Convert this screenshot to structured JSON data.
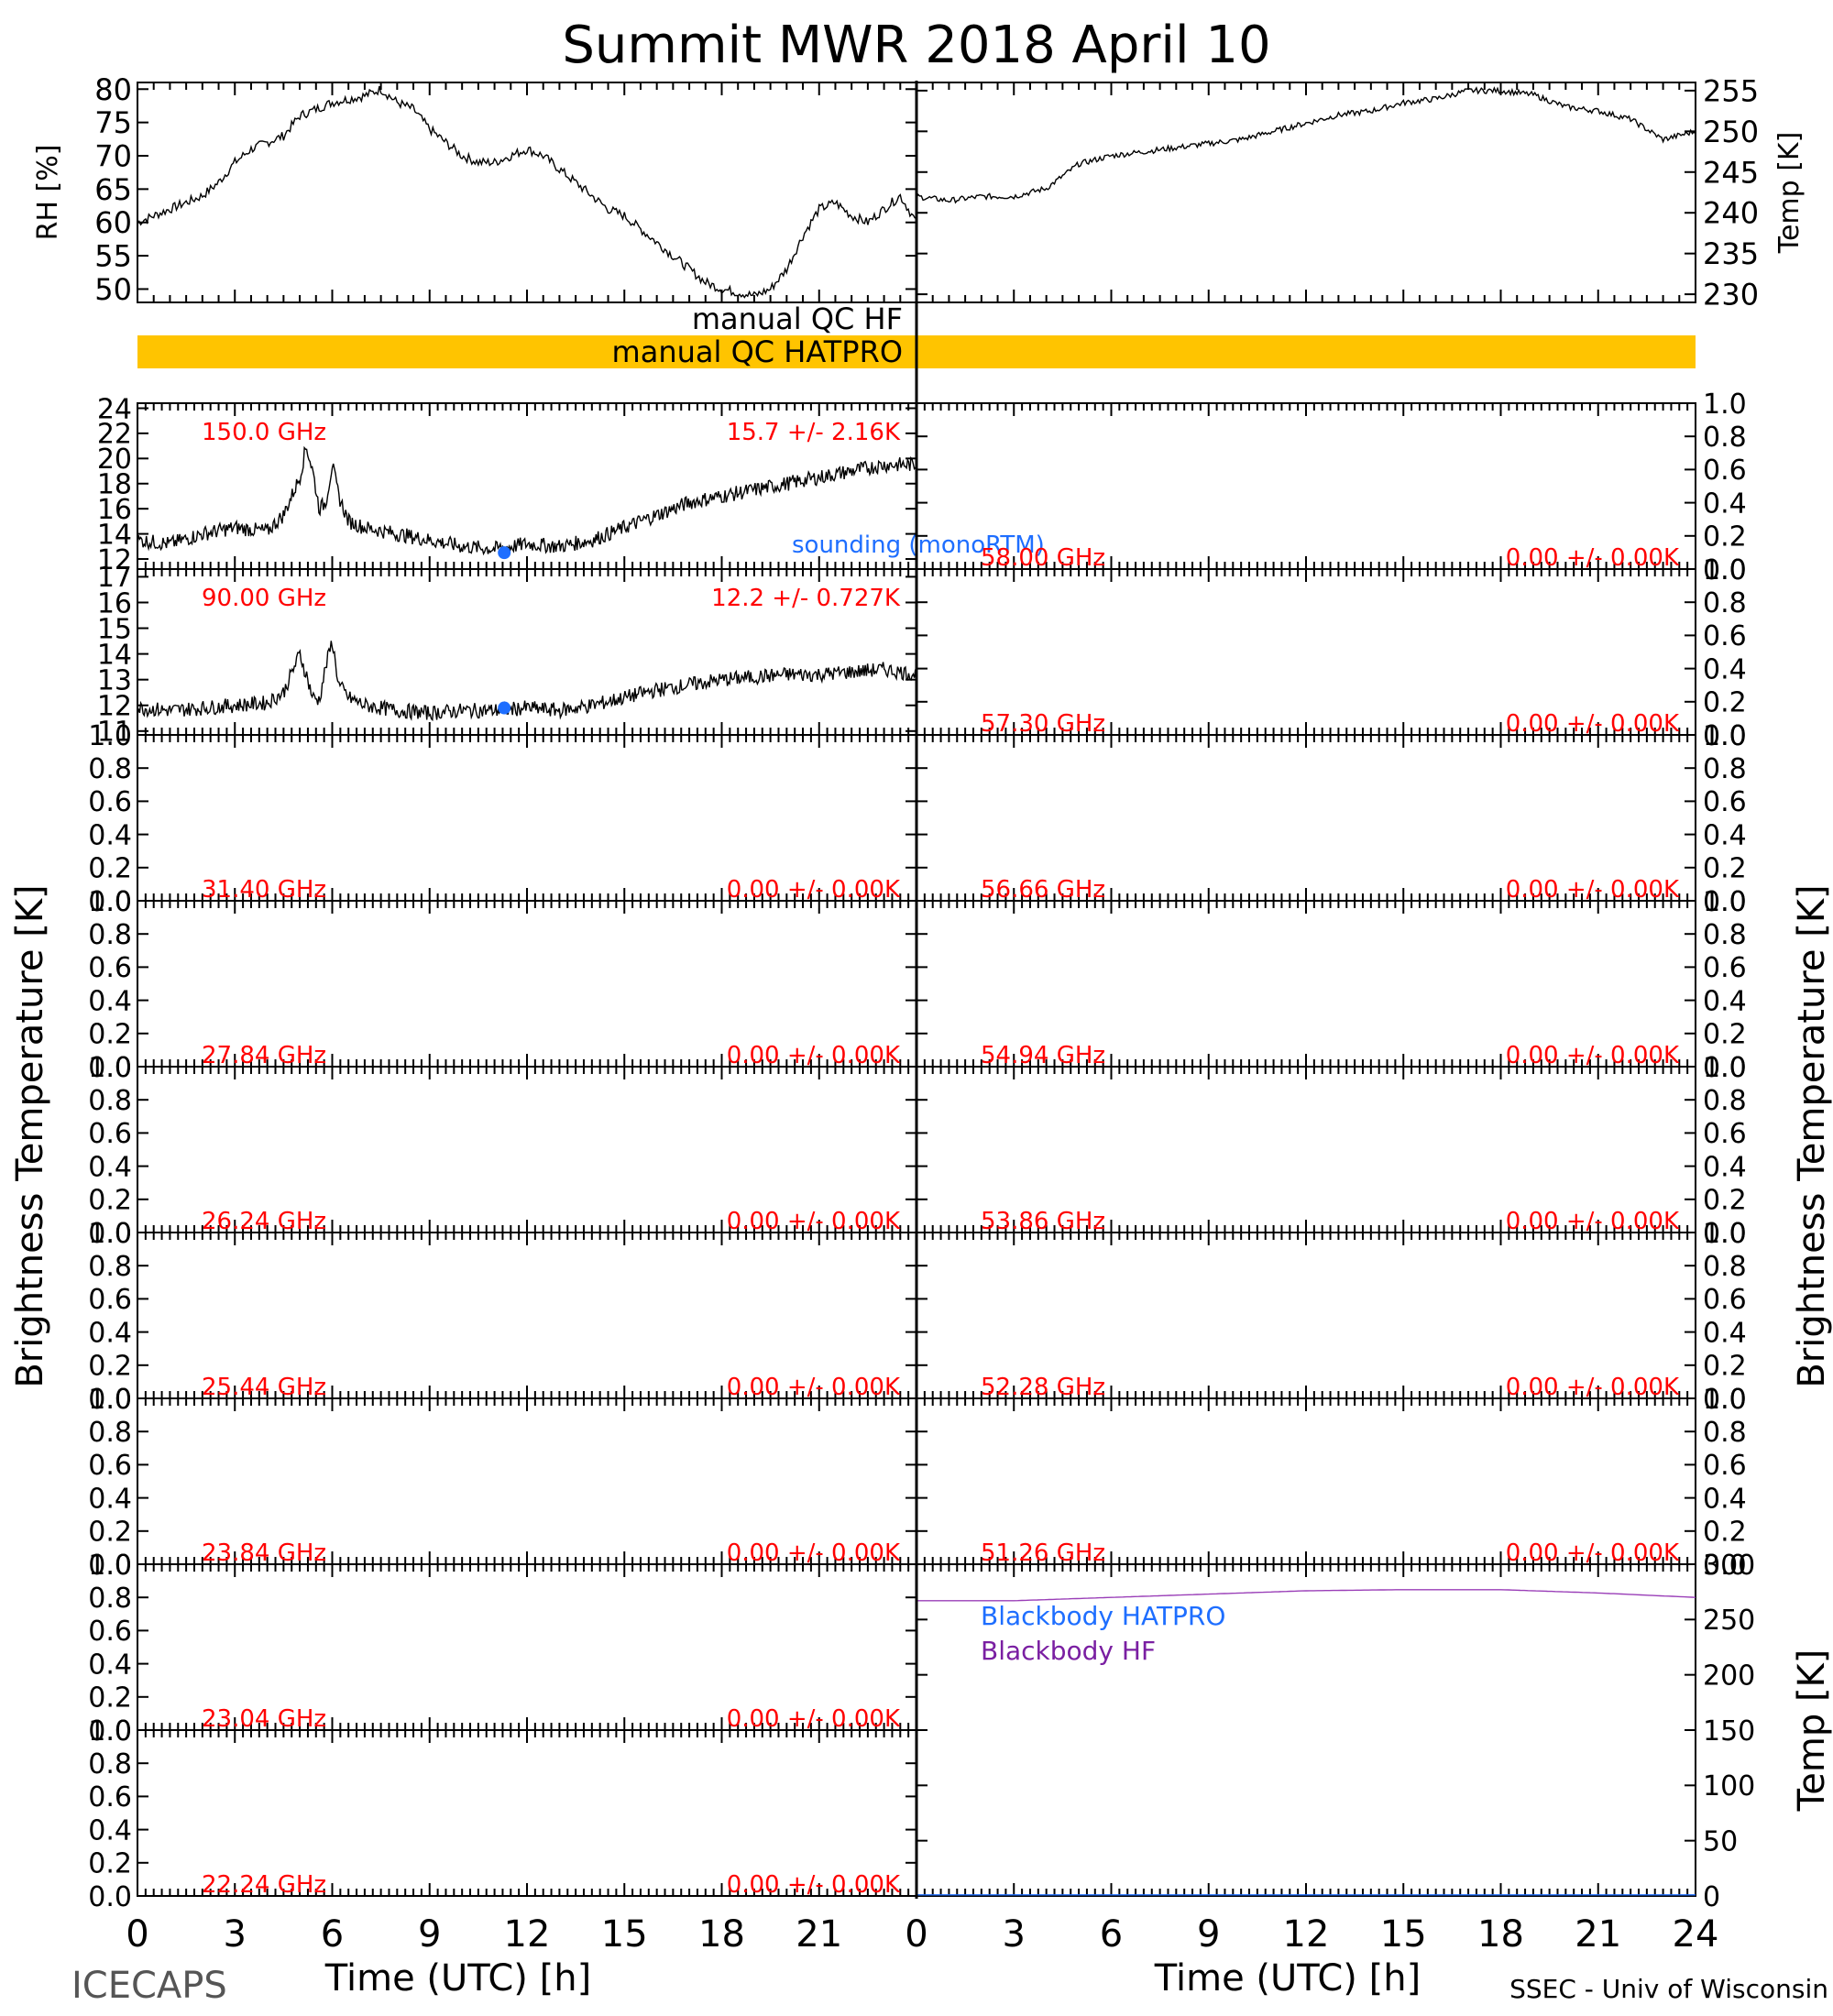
{
  "title": "Summit MWR 2018 April 10",
  "footer": {
    "left_label": "ICECAPS",
    "right_label": "SSEC - Univ of Wisconsin"
  },
  "axes": {
    "x_label": "Time (UTC) [h]",
    "x_ticks": [
      "0",
      "3",
      "6",
      "9",
      "12",
      "15",
      "18",
      "21",
      "24"
    ],
    "left_tb_label": "Brightness Temperature [K]",
    "right_tb_label": "Brightness Temperature [K]"
  },
  "qc": {
    "hf_label": "manual QC HF",
    "hatpro_label": "manual QC HATPRO",
    "hatpro_flag_color": "#ffc400"
  },
  "colors": {
    "trace": "#000000",
    "channel_label": "#ff0000",
    "sounding": "#1e6eff",
    "bb_hatpro": "#1e6eff",
    "bb_hf": "#7a1fa2",
    "bb_line": "#9a3fb8"
  },
  "chart_data": [
    {
      "type": "line",
      "panel": "rh",
      "ylabel": "RH [%]",
      "ylim": [
        48,
        81
      ],
      "yticks": [
        "50",
        "55",
        "60",
        "65",
        "70",
        "75",
        "80"
      ],
      "x": [
        0,
        0.5,
        1,
        1.5,
        2,
        2.5,
        3,
        3.5,
        4,
        4.5,
        5,
        5.5,
        6,
        6.5,
        7,
        7.5,
        8,
        8.5,
        9,
        9.5,
        10,
        10.5,
        11,
        11.5,
        12,
        12.5,
        13,
        13.5,
        14,
        14.5,
        15,
        15.5,
        16,
        16.5,
        17,
        17.5,
        18,
        18.5,
        19,
        19.5,
        20,
        20.5,
        21,
        21.5,
        22,
        22.5,
        23,
        23.5,
        24
      ],
      "values": [
        60,
        61,
        62,
        63,
        64,
        66,
        69,
        71,
        72,
        73,
        76,
        77,
        78,
        78.5,
        79,
        80,
        78,
        77,
        74,
        72,
        70,
        69,
        69,
        70,
        71,
        70,
        68,
        66,
        64,
        62,
        61,
        59,
        57,
        55,
        53,
        51,
        50,
        49.5,
        49,
        50,
        53,
        58,
        62,
        63,
        61,
        60,
        62,
        64,
        60
      ]
    },
    {
      "type": "line",
      "panel": "temp",
      "ylabel": "Temp [K]",
      "ylim": [
        229,
        256
      ],
      "yticks": [
        "230",
        "235",
        "240",
        "245",
        "250",
        "255"
      ],
      "x": [
        0,
        1,
        2,
        3,
        4,
        5,
        6,
        7,
        8,
        9,
        10,
        11,
        12,
        13,
        14,
        15,
        16,
        17,
        18,
        19,
        20,
        21,
        22,
        23,
        24
      ],
      "values": [
        242,
        241.5,
        242,
        242,
        243,
        246,
        247,
        247.5,
        248,
        248.5,
        249,
        250,
        251,
        252,
        252.5,
        253.5,
        254,
        255,
        255,
        254.5,
        253,
        252.5,
        251.5,
        249,
        250
      ]
    },
    {
      "type": "line",
      "panel": "tb",
      "column": "left",
      "channel": "150.0 GHz",
      "stat": "15.7 +/-  2.16K",
      "ylim": [
        11.2,
        24.4
      ],
      "yticks": [
        "12",
        "14",
        "16",
        "18",
        "20",
        "22",
        "24"
      ],
      "x": [
        0,
        1,
        2,
        3,
        4,
        4.5,
        5,
        5.2,
        5.4,
        5.6,
        5.8,
        6,
        6.2,
        6.5,
        7,
        8,
        9,
        10,
        11,
        12,
        13,
        14,
        15,
        16,
        17,
        18,
        19,
        20,
        21,
        22,
        23,
        24
      ],
      "values": [
        13.5,
        13.2,
        14,
        14.5,
        14.2,
        15.5,
        18.5,
        21,
        19,
        16,
        16.5,
        19.5,
        17,
        15,
        14.5,
        14,
        13.5,
        13,
        12.8,
        13.2,
        13,
        13.5,
        14.5,
        15.5,
        16.5,
        17,
        17.5,
        18,
        18.5,
        19,
        19.5,
        19.5
      ],
      "sounding": {
        "x": 11.3,
        "y": 12.5
      },
      "sounding_label": "sounding (monoRTM)"
    },
    {
      "type": "line",
      "panel": "tb",
      "column": "left",
      "channel": "90.00 GHz",
      "stat": "12.2 +/- 0.727K",
      "ylim": [
        10.85,
        17.3
      ],
      "yticks": [
        "11",
        "12",
        "13",
        "14",
        "15",
        "16",
        "17"
      ],
      "x": [
        0,
        1,
        2,
        3,
        4,
        4.5,
        5,
        5.2,
        5.4,
        5.6,
        5.8,
        6,
        6.2,
        6.5,
        7,
        8,
        9,
        10,
        11,
        12,
        13,
        14,
        15,
        16,
        17,
        18,
        19,
        20,
        21,
        22,
        23,
        24
      ],
      "values": [
        11.9,
        11.8,
        11.9,
        12,
        12.1,
        12.5,
        14,
        13.2,
        12.3,
        12.2,
        13.5,
        14.5,
        12.8,
        12.3,
        12,
        11.8,
        11.7,
        11.8,
        11.8,
        11.9,
        11.8,
        12,
        12.3,
        12.6,
        12.8,
        13,
        13.1,
        13.2,
        13.2,
        13.3,
        13.4,
        13.2
      ],
      "sounding": {
        "x": 11.3,
        "y": 11.9
      }
    },
    {
      "type": "line",
      "panel": "tb",
      "column": "left",
      "channel": "31.40 GHz",
      "stat": "0.00 +/- 0.00K",
      "ylim": [
        0,
        1
      ],
      "yticks": [
        "0.0",
        "0.2",
        "0.4",
        "0.6",
        "0.8",
        "1.0"
      ],
      "values": []
    },
    {
      "type": "line",
      "panel": "tb",
      "column": "left",
      "channel": "27.84 GHz",
      "stat": "0.00 +/- 0.00K",
      "ylim": [
        0,
        1
      ],
      "yticks": [
        "0.0",
        "0.2",
        "0.4",
        "0.6",
        "0.8",
        "1.0"
      ],
      "values": []
    },
    {
      "type": "line",
      "panel": "tb",
      "column": "left",
      "channel": "26.24 GHz",
      "stat": "0.00 +/- 0.00K",
      "ylim": [
        0,
        1
      ],
      "yticks": [
        "0.0",
        "0.2",
        "0.4",
        "0.6",
        "0.8",
        "1.0"
      ],
      "values": []
    },
    {
      "type": "line",
      "panel": "tb",
      "column": "left",
      "channel": "25.44 GHz",
      "stat": "0.00 +/- 0.00K",
      "ylim": [
        0,
        1
      ],
      "yticks": [
        "0.0",
        "0.2",
        "0.4",
        "0.6",
        "0.8",
        "1.0"
      ],
      "values": []
    },
    {
      "type": "line",
      "panel": "tb",
      "column": "left",
      "channel": "23.84 GHz",
      "stat": "0.00 +/- 0.00K",
      "ylim": [
        0,
        1
      ],
      "yticks": [
        "0.0",
        "0.2",
        "0.4",
        "0.6",
        "0.8",
        "1.0"
      ],
      "values": []
    },
    {
      "type": "line",
      "panel": "tb",
      "column": "left",
      "channel": "23.04 GHz",
      "stat": "0.00 +/- 0.00K",
      "ylim": [
        0,
        1
      ],
      "yticks": [
        "0.0",
        "0.2",
        "0.4",
        "0.6",
        "0.8",
        "1.0"
      ],
      "values": []
    },
    {
      "type": "line",
      "panel": "tb",
      "column": "left",
      "channel": "22.24 GHz",
      "stat": "0.00 +/- 0.00K",
      "ylim": [
        0,
        1
      ],
      "yticks": [
        "0.0",
        "0.2",
        "0.4",
        "0.6",
        "0.8",
        "1.0"
      ],
      "values": []
    },
    {
      "type": "line",
      "panel": "tb",
      "column": "right",
      "channel": "58.00 GHz",
      "stat": "0.00 +/- 0.00K",
      "ylim": [
        0,
        1
      ],
      "yticks": [
        "0.0",
        "0.2",
        "0.4",
        "0.6",
        "0.8",
        "1.0"
      ],
      "values": []
    },
    {
      "type": "line",
      "panel": "tb",
      "column": "right",
      "channel": "57.30 GHz",
      "stat": "0.00 +/- 0.00K",
      "ylim": [
        0,
        1
      ],
      "yticks": [
        "0.0",
        "0.2",
        "0.4",
        "0.6",
        "0.8",
        "1.0"
      ],
      "values": []
    },
    {
      "type": "line",
      "panel": "tb",
      "column": "right",
      "channel": "56.66 GHz",
      "stat": "0.00 +/- 0.00K",
      "ylim": [
        0,
        1
      ],
      "yticks": [
        "0.0",
        "0.2",
        "0.4",
        "0.6",
        "0.8",
        "1.0"
      ],
      "values": []
    },
    {
      "type": "line",
      "panel": "tb",
      "column": "right",
      "channel": "54.94 GHz",
      "stat": "0.00 +/- 0.00K",
      "ylim": [
        0,
        1
      ],
      "yticks": [
        "0.0",
        "0.2",
        "0.4",
        "0.6",
        "0.8",
        "1.0"
      ],
      "values": []
    },
    {
      "type": "line",
      "panel": "tb",
      "column": "right",
      "channel": "53.86 GHz",
      "stat": "0.00 +/- 0.00K",
      "ylim": [
        0,
        1
      ],
      "yticks": [
        "0.0",
        "0.2",
        "0.4",
        "0.6",
        "0.8",
        "1.0"
      ],
      "values": []
    },
    {
      "type": "line",
      "panel": "tb",
      "column": "right",
      "channel": "52.28 GHz",
      "stat": "0.00 +/- 0.00K",
      "ylim": [
        0,
        1
      ],
      "yticks": [
        "0.0",
        "0.2",
        "0.4",
        "0.6",
        "0.8",
        "1.0"
      ],
      "values": []
    },
    {
      "type": "line",
      "panel": "tb",
      "column": "right",
      "channel": "51.26 GHz",
      "stat": "0.00 +/- 0.00K",
      "ylim": [
        0,
        1
      ],
      "yticks": [
        "0.0",
        "0.2",
        "0.4",
        "0.6",
        "0.8",
        "1.0"
      ],
      "values": []
    },
    {
      "type": "line",
      "panel": "blackbody",
      "ylabel": "Temp [K]",
      "ylim": [
        0,
        300
      ],
      "yticks": [
        "0",
        "50",
        "100",
        "150",
        "200",
        "250",
        "300"
      ],
      "series": [
        {
          "name": "Blackbody HATPRO",
          "x": [
            0,
            24
          ],
          "values": [
            1,
            1
          ]
        },
        {
          "name": "Blackbody HF",
          "x": [
            0,
            3,
            6,
            9,
            12,
            15,
            18,
            21,
            24
          ],
          "values": [
            267,
            267,
            270,
            273,
            276,
            277,
            277,
            274,
            270
          ]
        }
      ]
    }
  ]
}
